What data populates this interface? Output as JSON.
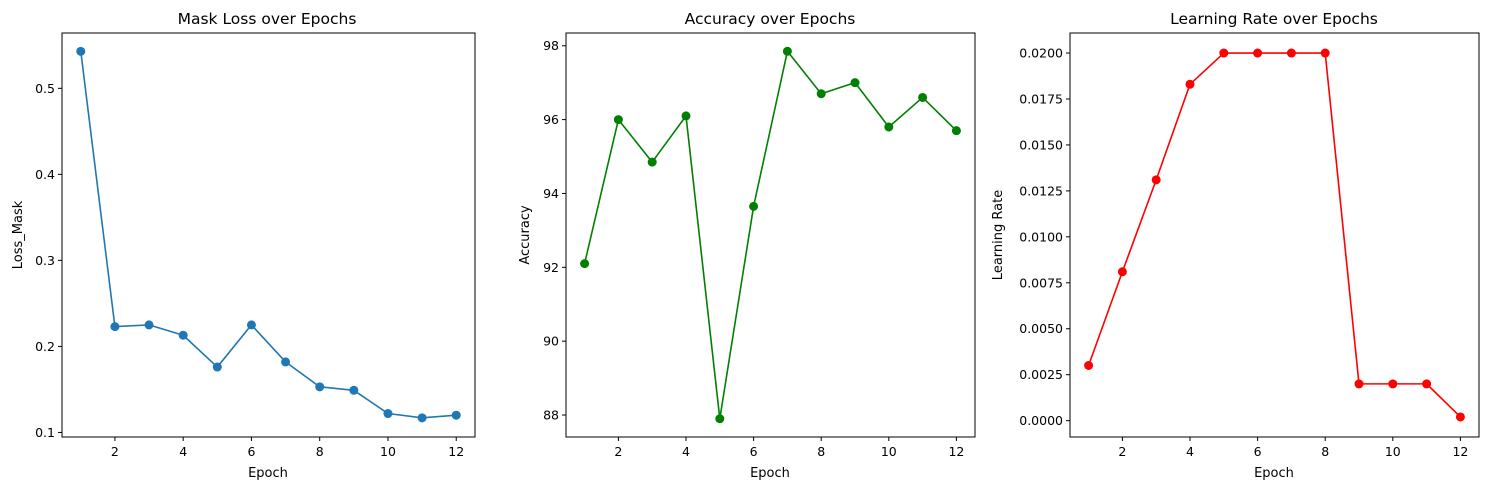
{
  "chart_data": [
    {
      "type": "line",
      "title": "Mask Loss over Epochs",
      "xlabel": "Epoch",
      "ylabel": "Loss_Mask",
      "color": "#1f77b4",
      "x": [
        1,
        2,
        3,
        4,
        5,
        6,
        7,
        8,
        9,
        10,
        11,
        12
      ],
      "y": [
        0.543,
        0.223,
        0.225,
        0.213,
        0.176,
        0.225,
        0.182,
        0.153,
        0.149,
        0.122,
        0.117,
        0.12
      ],
      "xlim": [
        0.45,
        12.55
      ],
      "ylim": [
        0.0947,
        0.5643
      ],
      "xticks": [
        2,
        4,
        6,
        8,
        10,
        12
      ],
      "yticks": [
        0.1,
        0.2,
        0.3,
        0.4,
        0.5
      ],
      "ytick_decimals": 1,
      "grid": false,
      "marker": "circle"
    },
    {
      "type": "line",
      "title": "Accuracy over Epochs",
      "xlabel": "Epoch",
      "ylabel": "Accuracy",
      "color": "#008000",
      "x": [
        1,
        2,
        3,
        4,
        5,
        6,
        7,
        8,
        9,
        10,
        11,
        12
      ],
      "y": [
        92.1,
        96.0,
        94.85,
        96.1,
        87.9,
        93.65,
        97.85,
        96.7,
        97.0,
        95.8,
        96.6,
        95.7
      ],
      "xlim": [
        0.45,
        12.55
      ],
      "ylim": [
        87.405,
        98.345
      ],
      "xticks": [
        2,
        4,
        6,
        8,
        10,
        12
      ],
      "yticks": [
        88,
        90,
        92,
        94,
        96,
        98
      ],
      "ytick_decimals": 0,
      "grid": false,
      "marker": "circle"
    },
    {
      "type": "line",
      "title": "Learning Rate over Epochs",
      "xlabel": "Epoch",
      "ylabel": "Learning Rate",
      "color": "#ff0000",
      "x": [
        1,
        2,
        3,
        4,
        5,
        6,
        7,
        8,
        9,
        10,
        11,
        12
      ],
      "y": [
        0.003,
        0.0081,
        0.0131,
        0.0183,
        0.02,
        0.02,
        0.02,
        0.02,
        0.002,
        0.002,
        0.002,
        0.0002
      ],
      "xlim": [
        0.45,
        12.55
      ],
      "ylim": [
        -0.00089,
        0.02109
      ],
      "xticks": [
        2,
        4,
        6,
        8,
        10,
        12
      ],
      "yticks": [
        0.0,
        0.0025,
        0.005,
        0.0075,
        0.01,
        0.0125,
        0.015,
        0.0175,
        0.02
      ],
      "ytick_decimals": 4,
      "grid": false,
      "marker": "circle"
    }
  ]
}
